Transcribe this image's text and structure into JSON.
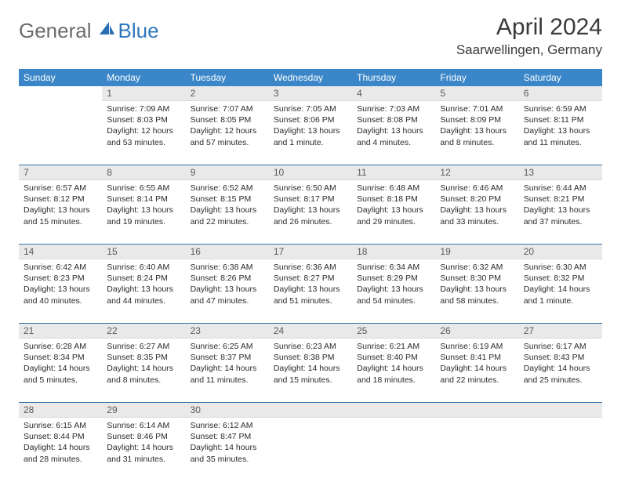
{
  "logo": {
    "text1": "General",
    "text2": "Blue"
  },
  "title": "April 2024",
  "location": "Saarwellingen, Germany",
  "weekdays": [
    "Sunday",
    "Monday",
    "Tuesday",
    "Wednesday",
    "Thursday",
    "Friday",
    "Saturday"
  ],
  "colors": {
    "header_bg": "#3a86c8",
    "header_text": "#ffffff",
    "daynum_bg": "#e9e9e9",
    "daynum_text": "#5a5a5a",
    "rule": "#3a74a8",
    "body_text": "#2b2b2b",
    "title_text": "#3a3a3a",
    "logo_gray": "#6b6b6b",
    "logo_blue": "#2f77bb"
  },
  "typography": {
    "title_fontsize": 30,
    "location_fontsize": 17,
    "weekday_fontsize": 12,
    "daynum_fontsize": 12,
    "body_fontsize": 10.5
  },
  "layout": {
    "columns": 7,
    "rows": 5,
    "first_day_column": 1
  },
  "days": [
    {
      "n": "1",
      "sunrise": "Sunrise: 7:09 AM",
      "sunset": "Sunset: 8:03 PM",
      "daylight": "Daylight: 12 hours and 53 minutes."
    },
    {
      "n": "2",
      "sunrise": "Sunrise: 7:07 AM",
      "sunset": "Sunset: 8:05 PM",
      "daylight": "Daylight: 12 hours and 57 minutes."
    },
    {
      "n": "3",
      "sunrise": "Sunrise: 7:05 AM",
      "sunset": "Sunset: 8:06 PM",
      "daylight": "Daylight: 13 hours and 1 minute."
    },
    {
      "n": "4",
      "sunrise": "Sunrise: 7:03 AM",
      "sunset": "Sunset: 8:08 PM",
      "daylight": "Daylight: 13 hours and 4 minutes."
    },
    {
      "n": "5",
      "sunrise": "Sunrise: 7:01 AM",
      "sunset": "Sunset: 8:09 PM",
      "daylight": "Daylight: 13 hours and 8 minutes."
    },
    {
      "n": "6",
      "sunrise": "Sunrise: 6:59 AM",
      "sunset": "Sunset: 8:11 PM",
      "daylight": "Daylight: 13 hours and 11 minutes."
    },
    {
      "n": "7",
      "sunrise": "Sunrise: 6:57 AM",
      "sunset": "Sunset: 8:12 PM",
      "daylight": "Daylight: 13 hours and 15 minutes."
    },
    {
      "n": "8",
      "sunrise": "Sunrise: 6:55 AM",
      "sunset": "Sunset: 8:14 PM",
      "daylight": "Daylight: 13 hours and 19 minutes."
    },
    {
      "n": "9",
      "sunrise": "Sunrise: 6:52 AM",
      "sunset": "Sunset: 8:15 PM",
      "daylight": "Daylight: 13 hours and 22 minutes."
    },
    {
      "n": "10",
      "sunrise": "Sunrise: 6:50 AM",
      "sunset": "Sunset: 8:17 PM",
      "daylight": "Daylight: 13 hours and 26 minutes."
    },
    {
      "n": "11",
      "sunrise": "Sunrise: 6:48 AM",
      "sunset": "Sunset: 8:18 PM",
      "daylight": "Daylight: 13 hours and 29 minutes."
    },
    {
      "n": "12",
      "sunrise": "Sunrise: 6:46 AM",
      "sunset": "Sunset: 8:20 PM",
      "daylight": "Daylight: 13 hours and 33 minutes."
    },
    {
      "n": "13",
      "sunrise": "Sunrise: 6:44 AM",
      "sunset": "Sunset: 8:21 PM",
      "daylight": "Daylight: 13 hours and 37 minutes."
    },
    {
      "n": "14",
      "sunrise": "Sunrise: 6:42 AM",
      "sunset": "Sunset: 8:23 PM",
      "daylight": "Daylight: 13 hours and 40 minutes."
    },
    {
      "n": "15",
      "sunrise": "Sunrise: 6:40 AM",
      "sunset": "Sunset: 8:24 PM",
      "daylight": "Daylight: 13 hours and 44 minutes."
    },
    {
      "n": "16",
      "sunrise": "Sunrise: 6:38 AM",
      "sunset": "Sunset: 8:26 PM",
      "daylight": "Daylight: 13 hours and 47 minutes."
    },
    {
      "n": "17",
      "sunrise": "Sunrise: 6:36 AM",
      "sunset": "Sunset: 8:27 PM",
      "daylight": "Daylight: 13 hours and 51 minutes."
    },
    {
      "n": "18",
      "sunrise": "Sunrise: 6:34 AM",
      "sunset": "Sunset: 8:29 PM",
      "daylight": "Daylight: 13 hours and 54 minutes."
    },
    {
      "n": "19",
      "sunrise": "Sunrise: 6:32 AM",
      "sunset": "Sunset: 8:30 PM",
      "daylight": "Daylight: 13 hours and 58 minutes."
    },
    {
      "n": "20",
      "sunrise": "Sunrise: 6:30 AM",
      "sunset": "Sunset: 8:32 PM",
      "daylight": "Daylight: 14 hours and 1 minute."
    },
    {
      "n": "21",
      "sunrise": "Sunrise: 6:28 AM",
      "sunset": "Sunset: 8:34 PM",
      "daylight": "Daylight: 14 hours and 5 minutes."
    },
    {
      "n": "22",
      "sunrise": "Sunrise: 6:27 AM",
      "sunset": "Sunset: 8:35 PM",
      "daylight": "Daylight: 14 hours and 8 minutes."
    },
    {
      "n": "23",
      "sunrise": "Sunrise: 6:25 AM",
      "sunset": "Sunset: 8:37 PM",
      "daylight": "Daylight: 14 hours and 11 minutes."
    },
    {
      "n": "24",
      "sunrise": "Sunrise: 6:23 AM",
      "sunset": "Sunset: 8:38 PM",
      "daylight": "Daylight: 14 hours and 15 minutes."
    },
    {
      "n": "25",
      "sunrise": "Sunrise: 6:21 AM",
      "sunset": "Sunset: 8:40 PM",
      "daylight": "Daylight: 14 hours and 18 minutes."
    },
    {
      "n": "26",
      "sunrise": "Sunrise: 6:19 AM",
      "sunset": "Sunset: 8:41 PM",
      "daylight": "Daylight: 14 hours and 22 minutes."
    },
    {
      "n": "27",
      "sunrise": "Sunrise: 6:17 AM",
      "sunset": "Sunset: 8:43 PM",
      "daylight": "Daylight: 14 hours and 25 minutes."
    },
    {
      "n": "28",
      "sunrise": "Sunrise: 6:15 AM",
      "sunset": "Sunset: 8:44 PM",
      "daylight": "Daylight: 14 hours and 28 minutes."
    },
    {
      "n": "29",
      "sunrise": "Sunrise: 6:14 AM",
      "sunset": "Sunset: 8:46 PM",
      "daylight": "Daylight: 14 hours and 31 minutes."
    },
    {
      "n": "30",
      "sunrise": "Sunrise: 6:12 AM",
      "sunset": "Sunset: 8:47 PM",
      "daylight": "Daylight: 14 hours and 35 minutes."
    }
  ]
}
